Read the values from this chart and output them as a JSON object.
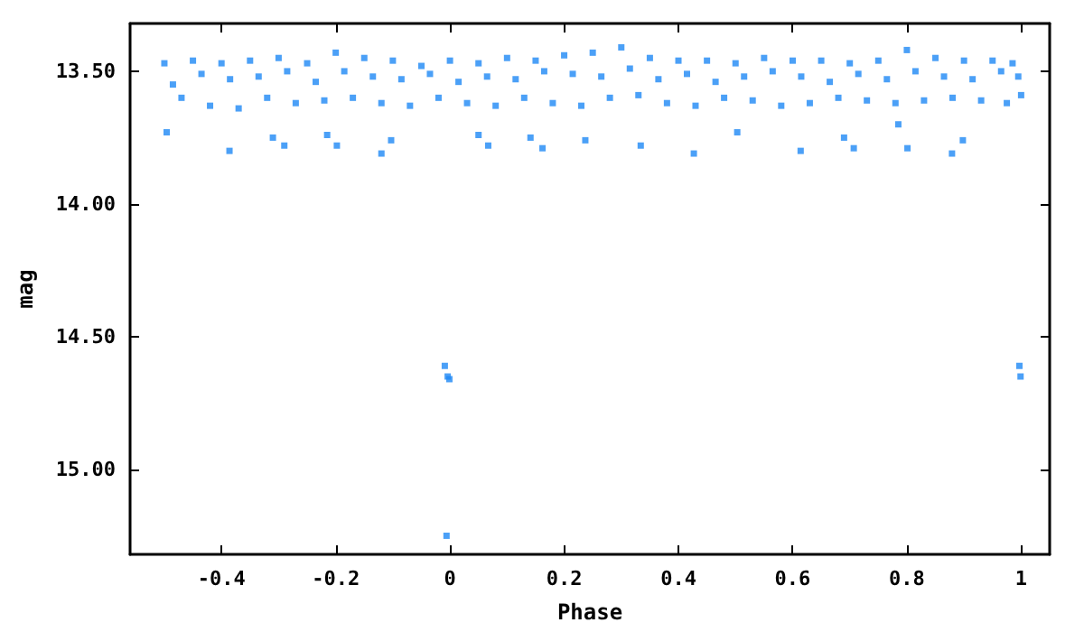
{
  "chart_data": {
    "type": "scatter",
    "xlabel": "Phase",
    "ylabel": "mag",
    "xlim": [
      -0.56,
      1.05
    ],
    "ylim": [
      15.32,
      13.32
    ],
    "xticks": [
      -0.4,
      -0.2,
      0,
      0.2,
      0.4,
      0.6,
      0.8,
      1
    ],
    "yticks": [
      {
        "value": 13.5,
        "label": "13.50"
      },
      {
        "value": 14,
        "label": "14.00"
      },
      {
        "value": 14.5,
        "label": "14.50"
      },
      {
        "value": 15,
        "label": "15.00"
      }
    ],
    "grid": false,
    "marker": "square",
    "series": [
      {
        "color": "#1e88f5",
        "x": [
          -0.5,
          -0.45,
          -0.4,
          -0.35,
          -0.3,
          -0.25,
          -0.2,
          -0.15,
          -0.1,
          -0.05,
          0,
          0.05,
          0.1,
          0.15,
          0.2,
          0.25,
          0.3,
          0.35,
          0.4,
          0.45,
          0.5,
          0.55,
          0.6,
          0.65,
          0.7,
          0.75,
          0.8,
          0.85,
          0.9,
          0.95,
          0.985,
          -0.485,
          -0.435,
          -0.385,
          -0.335,
          -0.285,
          -0.235,
          -0.185,
          -0.135,
          -0.085,
          -0.035,
          0.015,
          0.065,
          0.115,
          0.165,
          0.215,
          0.265,
          0.315,
          0.365,
          0.415,
          0.465,
          0.515,
          0.565,
          0.615,
          0.665,
          0.715,
          0.765,
          0.815,
          0.865,
          0.915,
          0.965,
          0.995,
          -0.47,
          -0.42,
          -0.37,
          -0.32,
          -0.27,
          -0.22,
          -0.17,
          -0.12,
          -0.07,
          -0.02,
          0.03,
          0.08,
          0.13,
          0.18,
          0.23,
          0.28,
          0.33,
          0.38,
          0.43,
          0.48,
          0.53,
          0.58,
          0.63,
          0.68,
          0.73,
          0.78,
          0.83,
          0.88,
          0.93,
          0.975,
          1.0,
          -0.496,
          -0.386,
          -0.31,
          -0.29,
          -0.215,
          -0.198,
          -0.12,
          -0.103,
          0.05,
          0.067,
          0.141,
          0.162,
          0.237,
          0.334,
          0.427,
          0.503,
          0.614,
          0.69,
          0.707,
          0.785,
          0.801,
          0.879,
          0.898,
          -0.006,
          -0.009,
          -0.004,
          -0.001,
          0.997,
          0.999
        ],
        "values": [
          13.47,
          13.46,
          13.47,
          13.46,
          13.45,
          13.47,
          13.43,
          13.45,
          13.46,
          13.48,
          13.46,
          13.47,
          13.45,
          13.46,
          13.44,
          13.43,
          13.41,
          13.45,
          13.46,
          13.46,
          13.47,
          13.45,
          13.46,
          13.46,
          13.47,
          13.46,
          13.42,
          13.45,
          13.46,
          13.46,
          13.47,
          13.55,
          13.51,
          13.53,
          13.52,
          13.5,
          13.54,
          13.5,
          13.52,
          13.53,
          13.51,
          13.54,
          13.52,
          13.53,
          13.5,
          13.51,
          13.52,
          13.49,
          13.53,
          13.51,
          13.54,
          13.52,
          13.5,
          13.52,
          13.54,
          13.51,
          13.53,
          13.5,
          13.52,
          13.53,
          13.5,
          13.52,
          13.6,
          13.63,
          13.64,
          13.6,
          13.62,
          13.61,
          13.6,
          13.62,
          13.63,
          13.6,
          13.62,
          13.63,
          13.6,
          13.62,
          13.63,
          13.6,
          13.59,
          13.62,
          13.63,
          13.6,
          13.61,
          13.63,
          13.62,
          13.6,
          13.61,
          13.62,
          13.61,
          13.6,
          13.61,
          13.62,
          13.59,
          13.73,
          13.8,
          13.75,
          13.78,
          13.74,
          13.78,
          13.81,
          13.76,
          13.74,
          13.78,
          13.75,
          13.79,
          13.76,
          13.78,
          13.81,
          13.73,
          13.8,
          13.75,
          13.79,
          13.7,
          13.79,
          13.81,
          13.76,
          15.25,
          14.61,
          14.65,
          14.66,
          14.61,
          14.65
        ]
      }
    ]
  }
}
